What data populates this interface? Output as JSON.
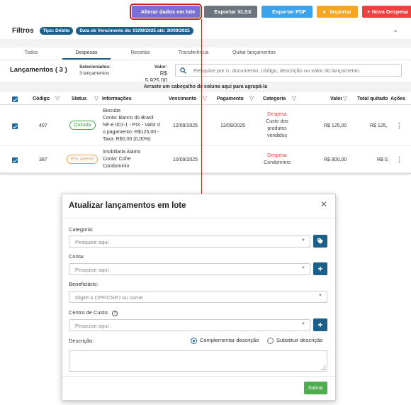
{
  "toolbar": {
    "lote_label": "Alterar dados em lote",
    "xlsx_label": "Exportar XLSX",
    "pdf_label": "Exportar PDF",
    "import_label": "Importar",
    "nova_label": "+ Nova Despesa"
  },
  "filters": {
    "title": "Filtros",
    "chips": [
      "Tipo: Débito",
      "Data de Vencimento de: 01/09/2025 até: 30/09/2025"
    ]
  },
  "tabs": [
    "Todos",
    "Despesas",
    "Receitas",
    "Transferência",
    "Quitar lançamentos"
  ],
  "summary": {
    "label": "Lançamentos ( 3 )",
    "selected_title": "Selecionados:",
    "selected_value": "3 lançamentos",
    "value_title": "Valor:",
    "value_amount": "R$ 5.925,00",
    "search_placeholder": "Pesquise por n. documento, código, descrição ou valor do lançamento"
  },
  "group_hint": "Arraste um cabeçalho de coluna aqui para agrupá-la",
  "columns": [
    "Código",
    "Status",
    "Informações",
    "Vencimento",
    "Pagamento",
    "Categoria",
    "Valor",
    "Total quitado",
    "Ações"
  ],
  "rows": [
    {
      "codigo": "407",
      "status": "Quitada",
      "info": [
        "Biocube",
        "Conta: Banco do Brasil",
        "NF-e 001-1 - PIX - Valor d",
        "o pagamento: R$125,00 -",
        "Taxa: R$0,00 (0,00%)"
      ],
      "vencimento": "12/09/2025",
      "pagamento": "12/09/2025",
      "categoria": "Despesa",
      "subcategoria": [
        "Custo dos",
        "produtos",
        "vendidos"
      ],
      "valor": "R$  125,00",
      "quitado": "R$ 125,"
    },
    {
      "codigo": "387",
      "status": "Em aberto",
      "info": [
        "Imobiliaria Alamo",
        "Conta: Cofre",
        "Condominio"
      ],
      "vencimento": "10/09/2025",
      "pagamento": "",
      "categoria": "Despesa",
      "subcategoria": [
        "Condomínio"
      ],
      "valor": "R$  800,00",
      "quitado": "R$ 0,"
    }
  ],
  "modal": {
    "title": "Atualizar lançamentos em lote",
    "categoria_label": "Categoria:",
    "categoria_placeholder": "Pesquise aqui",
    "conta_label": "Conta:",
    "conta_placeholder": "Pesquise aqui",
    "beneficiario_label": "Beneficiário:",
    "beneficiario_placeholder": "Digite o CPF/CNPJ ou nome",
    "centro_label": "Centro de Custo:",
    "centro_placeholder": "Pesquise aqui",
    "descricao_label": "Descrição:",
    "radio_complementar": "Complementar descrição",
    "radio_substituir": "Substituir descrição",
    "save_label": "Salvar"
  },
  "colors": {
    "primary": "#1b5f8a",
    "lote": "#7b6fd6",
    "xlsx": "#6c757d",
    "pdf": "#3aa3ee",
    "importar": "#f5a623",
    "nova": "#ef4040",
    "save": "#4cae4c",
    "highlight": "#cc2222"
  }
}
